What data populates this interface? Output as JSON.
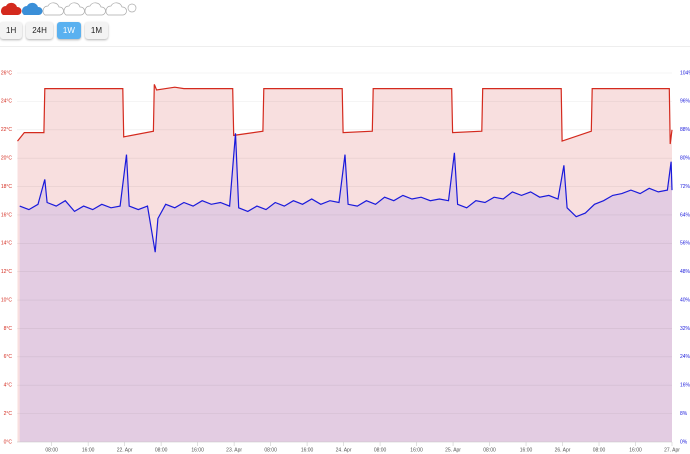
{
  "toolbar": {
    "buttons": [
      "1H",
      "24H",
      "1W",
      "1M"
    ],
    "selected": "1W"
  },
  "chart_data": {
    "type": "area-line",
    "xlim": [
      0.4,
      144
    ],
    "xticks": [
      {
        "value": 8,
        "label": "08:00"
      },
      {
        "value": 16,
        "label": "16:00"
      },
      {
        "value": 24,
        "label": "22. Apr"
      },
      {
        "value": 32,
        "label": "08:00"
      },
      {
        "value": 40,
        "label": "16:00"
      },
      {
        "value": 48,
        "label": "23. Apr"
      },
      {
        "value": 56,
        "label": "08:00"
      },
      {
        "value": 64,
        "label": "16:00"
      },
      {
        "value": 72,
        "label": "24. Apr"
      },
      {
        "value": 80,
        "label": "08:00"
      },
      {
        "value": 88,
        "label": "16:00"
      },
      {
        "value": 96,
        "label": "25. Apr"
      },
      {
        "value": 104,
        "label": "08:00"
      },
      {
        "value": 112,
        "label": "16:00"
      },
      {
        "value": 120,
        "label": "26. Apr"
      },
      {
        "value": 128,
        "label": "08:00"
      },
      {
        "value": 136,
        "label": "16:00"
      },
      {
        "value": 144,
        "label": "27. Apr"
      }
    ],
    "ylim": [
      0,
      26
    ],
    "yticks": [
      {
        "value": 0,
        "label": "0°C"
      },
      {
        "value": 2,
        "label": "2°C"
      },
      {
        "value": 4,
        "label": "4°C"
      },
      {
        "value": 6,
        "label": "6°C"
      },
      {
        "value": 8,
        "label": "8°C"
      },
      {
        "value": 10,
        "label": "10°C"
      },
      {
        "value": 12,
        "label": "12°C"
      },
      {
        "value": 14,
        "label": "14°C"
      },
      {
        "value": 16,
        "label": "16°C"
      },
      {
        "value": 18,
        "label": "18°C"
      },
      {
        "value": 20,
        "label": "20°C"
      },
      {
        "value": 22,
        "label": "22°C"
      },
      {
        "value": 24,
        "label": "24°C"
      },
      {
        "value": 26,
        "label": "26°C"
      }
    ],
    "y2lim": [
      0,
      104
    ],
    "y2ticks": [
      {
        "value": 0,
        "label": "0%"
      },
      {
        "value": 8,
        "label": "8%"
      },
      {
        "value": 16,
        "label": "16%"
      },
      {
        "value": 24,
        "label": "24%"
      },
      {
        "value": 32,
        "label": "32%"
      },
      {
        "value": 40,
        "label": "40%"
      },
      {
        "value": 48,
        "label": "48%"
      },
      {
        "value": 56,
        "label": "56%"
      },
      {
        "value": 64,
        "label": "64%"
      },
      {
        "value": 72,
        "label": "72%"
      },
      {
        "value": 80,
        "label": "80%"
      },
      {
        "value": 88,
        "label": "88%"
      },
      {
        "value": 96,
        "label": "96%"
      },
      {
        "value": 104,
        "label": "104%"
      }
    ],
    "grid": true,
    "series": [
      {
        "color": "#d42a1e",
        "fill": "#f8dfdf",
        "axis": "y",
        "x": [
          0.5,
          2,
          6.3,
          6.5,
          23.6,
          23.8,
          30.3,
          30.5,
          31,
          35,
          37,
          47.7,
          47.9,
          54.3,
          54.5,
          71.7,
          71.9,
          78.3,
          78.5,
          95.7,
          95.9,
          102.3,
          102.5,
          119.7,
          119.9,
          126.3,
          126.5,
          143.4,
          143.6,
          144
        ],
        "values": [
          21.2,
          21.8,
          21.8,
          24.9,
          24.9,
          21.5,
          21.9,
          25.2,
          24.8,
          25.0,
          24.9,
          24.9,
          21.6,
          21.9,
          24.9,
          24.9,
          21.8,
          21.9,
          24.9,
          24.9,
          21.8,
          21.9,
          24.9,
          24.9,
          21.2,
          21.9,
          24.9,
          24.9,
          21.0,
          22.0
        ]
      },
      {
        "color": "#1a1adb",
        "fill": "#dfc9e3",
        "axis": "y2",
        "x": [
          1,
          3,
          5,
          6.5,
          7,
          9,
          11,
          13,
          15,
          17,
          19,
          21,
          23,
          24.4,
          25,
          27,
          29,
          30.7,
          31.3,
          33,
          35,
          37,
          39,
          41,
          43,
          45,
          47,
          48.3,
          49,
          51,
          53,
          55,
          57,
          59,
          61,
          63,
          65,
          67,
          69,
          71,
          72.3,
          73,
          75,
          77,
          79,
          81,
          83,
          85,
          87,
          89,
          91,
          93,
          95,
          96.3,
          97,
          99,
          101,
          103,
          105,
          107,
          109,
          111,
          113,
          115,
          117,
          119,
          120.3,
          121,
          123,
          125,
          127,
          129,
          131,
          133,
          135,
          137,
          139,
          141,
          143,
          143.8,
          144
        ],
        "values": [
          66.5,
          65.5,
          67,
          74,
          67.5,
          66.5,
          68,
          65,
          66.5,
          65.5,
          67,
          66,
          66.5,
          81,
          66.5,
          65.5,
          66.5,
          53.5,
          63,
          67,
          66,
          67.5,
          66.5,
          68,
          67,
          67.5,
          66.5,
          87,
          66,
          65,
          66.5,
          65.5,
          67.5,
          66.5,
          68,
          67,
          68.5,
          67,
          68,
          67.5,
          81,
          67,
          66.5,
          68,
          67,
          69,
          68,
          69.5,
          68.5,
          69,
          68,
          68.5,
          68,
          81.5,
          67,
          66,
          68,
          67.5,
          69,
          68.5,
          70.5,
          69.5,
          70.5,
          69,
          69.5,
          68.5,
          78,
          66,
          63.5,
          64.5,
          67,
          68,
          69.5,
          70,
          71,
          70,
          71.5,
          70.5,
          71,
          79,
          71
        ]
      }
    ]
  }
}
